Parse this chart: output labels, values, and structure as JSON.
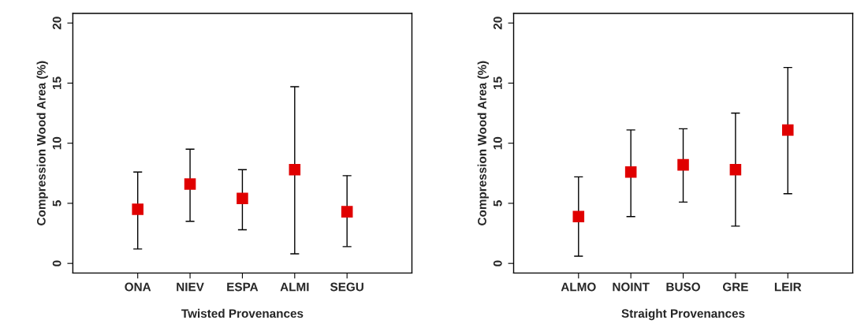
{
  "chart_data": [
    {
      "type": "scatter",
      "xlabel": "Twisted Provenances",
      "ylabel": "Compression Wood Area (%)",
      "categories": [
        "ONA",
        "NIEV",
        "ESPA",
        "ALMI",
        "SEGU"
      ],
      "ylim": [
        -0.8,
        20.8
      ],
      "yticks": [
        0,
        5,
        10,
        15,
        20
      ],
      "marker": "square",
      "grid": false,
      "legend": false,
      "series": [
        {
          "color": "#e00000",
          "values": [
            4.5,
            6.6,
            5.4,
            7.8,
            4.3
          ],
          "errors": [
            [
              1.2,
              7.6
            ],
            [
              3.5,
              9.5
            ],
            [
              2.8,
              7.8
            ],
            [
              0.8,
              14.7
            ],
            [
              1.4,
              7.3
            ]
          ]
        }
      ]
    },
    {
      "type": "scatter",
      "xlabel": "Straight Provenances",
      "ylabel": "Compression Wood Area (%)",
      "categories": [
        "ALMO",
        "NOINT",
        "BUSO",
        "GRE",
        "LEIR"
      ],
      "ylim": [
        -0.8,
        20.8
      ],
      "yticks": [
        0,
        5,
        10,
        15,
        20
      ],
      "marker": "square",
      "grid": false,
      "legend": false,
      "series": [
        {
          "color": "#e00000",
          "values": [
            3.9,
            7.6,
            8.2,
            7.8,
            11.1
          ],
          "errors": [
            [
              0.6,
              7.2
            ],
            [
              3.9,
              11.1
            ],
            [
              5.1,
              11.2
            ],
            [
              3.1,
              12.5
            ],
            [
              5.8,
              16.3
            ]
          ]
        }
      ]
    }
  ]
}
